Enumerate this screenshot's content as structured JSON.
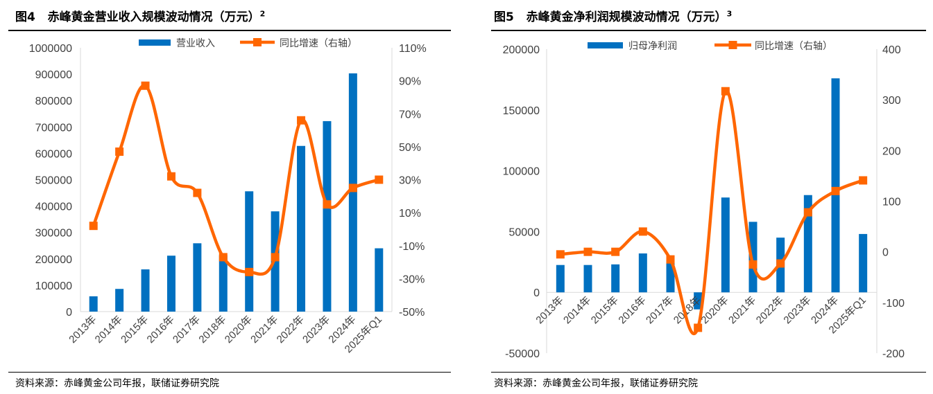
{
  "charts": [
    {
      "fig_label": "图4",
      "title": "赤峰黄金营业收入规模波动情况（万元）",
      "footnote": "2",
      "source": "资料来源：赤峰黄金公司年报，联储证券研究院"
    },
    {
      "fig_label": "图5",
      "title": "赤峰黄金净利润规模波动情况（万元）",
      "footnote": "3",
      "source": "资料来源：赤峰黄金公司年报，联储证券研究院"
    }
  ],
  "colors": {
    "bar": "#0070C0",
    "line": "#FF6600",
    "axis": "#D9D9D9",
    "text": "#404040"
  },
  "chart_data": [
    {
      "type": "bar",
      "categories": [
        "2013年",
        "2014年",
        "2015年",
        "2016年",
        "2017年",
        "2018年",
        "2020年",
        "2021年",
        "2022年",
        "2023年",
        "2024年",
        "2025年Q1"
      ],
      "series": [
        {
          "name": "营业收入",
          "type": "bar",
          "axis": "left",
          "values": [
            58000,
            86000,
            160000,
            212000,
            259000,
            214000,
            456000,
            380000,
            628000,
            722000,
            903000,
            240000
          ]
        },
        {
          "name": "同比增速（右轴）",
          "type": "line",
          "axis": "right",
          "values": [
            2,
            47,
            87,
            32,
            22,
            -17,
            -26,
            -17,
            66,
            15,
            25,
            30
          ]
        }
      ],
      "y_left": {
        "min": 0,
        "max": 1000000,
        "ticks": [
          "0",
          "100000",
          "200000",
          "300000",
          "400000",
          "500000",
          "600000",
          "700000",
          "800000",
          "900000",
          "1000000"
        ]
      },
      "y_right": {
        "min": -50,
        "max": 110,
        "ticks": [
          "-50%",
          "-30%",
          "-10%",
          "10%",
          "30%",
          "50%",
          "70%",
          "90%",
          "110%"
        ]
      },
      "legend_position": "top"
    },
    {
      "type": "bar",
      "categories": [
        "2013年",
        "2014年",
        "2015年",
        "2016年",
        "2017年",
        "2018年",
        "2020年",
        "2021年",
        "2022年",
        "2023年",
        "2024年",
        "2025年Q1"
      ],
      "series": [
        {
          "name": "归母净利润",
          "type": "bar",
          "axis": "left",
          "values": [
            22500,
            22500,
            23000,
            32000,
            25000,
            -14000,
            78000,
            58000,
            45000,
            80000,
            176000,
            48000
          ]
        },
        {
          "name": "同比增速（右轴）",
          "type": "line",
          "axis": "right",
          "values": [
            -5,
            0,
            0,
            40,
            -15,
            -150,
            317,
            -25,
            -23,
            78,
            120,
            141
          ]
        }
      ],
      "y_left": {
        "min": -50000,
        "max": 200000,
        "ticks": [
          "-50000",
          "0",
          "50000",
          "100000",
          "150000",
          "200000"
        ]
      },
      "y_right": {
        "min": -200,
        "max": 400,
        "ticks": [
          "-200",
          "-100",
          "0",
          "100",
          "200",
          "300",
          "400"
        ]
      },
      "legend_position": "top"
    }
  ]
}
